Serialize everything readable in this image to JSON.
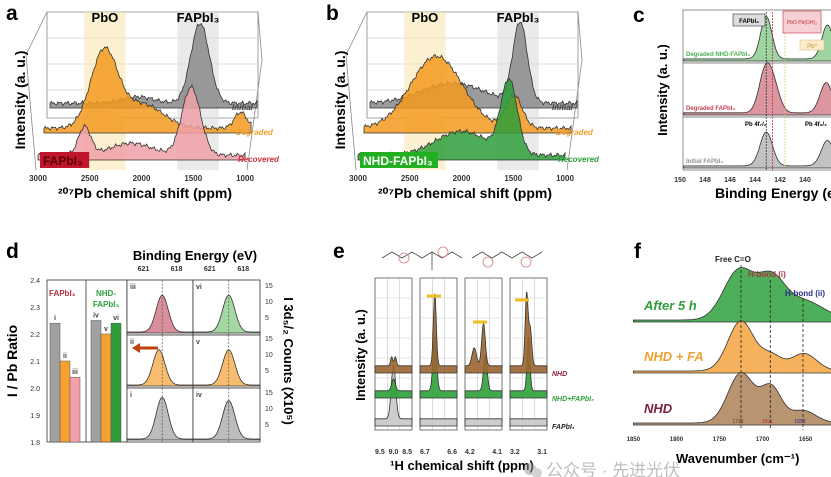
{
  "chart_data": [
    {
      "panel": "a",
      "type": "area",
      "xlabel": "²⁰⁷Pb chemical shift (ppm)",
      "ylabel": "Intensity (a. u.)",
      "xlim": [
        3000,
        1000
      ],
      "xticks": [
        "3000",
        "2500",
        "2000",
        "1500",
        "1000"
      ],
      "bands": [
        {
          "label": "PbO",
          "range": [
            2650,
            2250
          ],
          "color": "#f8e7b0"
        },
        {
          "label": "FAPbI₃",
          "range": [
            1750,
            1350
          ],
          "color": "#dcdcdc"
        }
      ],
      "sample_label": "FAPbI₃",
      "sample_color": "#c0152a",
      "series": [
        {
          "name": "Initial",
          "color": "#8a8a8a",
          "label_color": "#444444",
          "peaks": [
            [
              1550,
              1.0,
              90
            ],
            [
              2150,
              0.08,
              150
            ]
          ]
        },
        {
          "name": "Degraded",
          "color": "#f39a1f",
          "label_color": "#f0a030",
          "peaks": [
            [
              2420,
              0.95,
              130
            ],
            [
              2050,
              0.3,
              200
            ],
            [
              1100,
              0.2,
              60
            ]
          ]
        },
        {
          "name": "Recovered",
          "color": "#f0a0a8",
          "label_color": "#d03040",
          "peaks": [
            [
              1520,
              0.85,
              90
            ],
            [
              2550,
              0.35,
              60
            ],
            [
              2100,
              0.15,
              200
            ]
          ]
        }
      ]
    },
    {
      "panel": "b",
      "type": "area",
      "xlabel": "²⁰⁷Pb chemical shift (ppm)",
      "ylabel": "Intensity (a. u.)",
      "xlim": [
        3000,
        1000
      ],
      "xticks": [
        "3000",
        "2500",
        "2000",
        "1500",
        "1000"
      ],
      "bands": [
        {
          "label": "PbO",
          "range": [
            2650,
            2250
          ],
          "color": "#f8e7b0"
        },
        {
          "label": "FAPbI₃",
          "range": [
            1750,
            1350
          ],
          "color": "#dcdcdc"
        }
      ],
      "sample_label": "NHD-FAPbI₃",
      "sample_color": "#22b022",
      "series": [
        {
          "name": "Initial",
          "color": "#8a8a8a",
          "label_color": "#444444",
          "peaks": [
            [
              1550,
              1.0,
              70
            ],
            [
              2200,
              0.25,
              300
            ]
          ]
        },
        {
          "name": "Degraded",
          "color": "#f39a1f",
          "label_color": "#f0a030",
          "peaks": [
            [
              2300,
              0.9,
              250
            ],
            [
              1550,
              0.4,
              80
            ]
          ]
        },
        {
          "name": "Recovered",
          "color": "#2e9e3a",
          "label_color": "#2e9e3a",
          "peaks": [
            [
              1540,
              0.9,
              80
            ],
            [
              2000,
              0.3,
              250
            ]
          ]
        }
      ]
    },
    {
      "panel": "c",
      "type": "area",
      "xlabel": "Binding Energy (eV)",
      "ylabel": "Intensity (a. u.)",
      "xlim": [
        150,
        138
      ],
      "xticks": [
        "150",
        "148",
        "146",
        "144",
        "142",
        "140"
      ],
      "markers": [
        {
          "label": "FAPbI₃",
          "x": 143.1
        },
        {
          "label": "PbO Pb(OH)₂",
          "x": 142.6
        },
        {
          "label": "Pb⁰",
          "x": 141.6
        }
      ],
      "peak_labels": [
        "Pb 4f₇/₂",
        "Pb 4f₅/₂"
      ],
      "series": [
        {
          "name": "Degraded NHD-FAPbI₃",
          "color": "#4cb050",
          "peaks": [
            [
              143.1,
              1.0,
              0.45
            ],
            [
              138.2,
              0.8,
              0.45
            ]
          ]
        },
        {
          "name": "Degraded FAPbI₃",
          "color": "#c04050",
          "peaks": [
            [
              143.2,
              0.9,
              0.5
            ],
            [
              142.5,
              0.55,
              0.5
            ],
            [
              138.3,
              0.7,
              0.5
            ]
          ]
        },
        {
          "name": "Initial FAPbI₃",
          "color": "#909090",
          "peaks": [
            [
              143.1,
              0.8,
              0.5
            ],
            [
              138.2,
              0.6,
              0.5
            ]
          ]
        }
      ]
    },
    {
      "panel": "d",
      "type": "bar",
      "ylabel": "I / Pb Ratio",
      "ylim": [
        1.8,
        2.4
      ],
      "yticks": [
        "2.4",
        "2.3",
        "2.2",
        "2.1",
        "2.0",
        "1.9",
        "1.8"
      ],
      "groups": [
        {
          "label": "FAPbI₃",
          "label_lines": [
            "FAPbI₃"
          ],
          "color": "#b03040",
          "bars": [
            {
              "label": "i",
              "value": 2.24,
              "color": "#a0a0a0"
            },
            {
              "label": "ii",
              "value": 2.1,
              "color": "#f5a030"
            },
            {
              "label": "iii",
              "value": 2.04,
              "color": "#f4a0a8"
            }
          ]
        },
        {
          "label": "NHD-FAPbI₃",
          "label_lines": [
            "NHD-",
            "FAPbI₃"
          ],
          "color": "#2e9e3a",
          "bars": [
            {
              "label": "iv",
              "value": 2.25,
              "color": "#a0a0a0"
            },
            {
              "label": "v",
              "value": 2.2,
              "color": "#f5a030"
            },
            {
              "label": "vi",
              "value": 2.24,
              "color": "#2e9e3a"
            }
          ]
        }
      ],
      "inset": {
        "xlabel": "Binding Energy (eV)",
        "xticks": [
          "621",
          "618"
        ],
        "ylabel": "I 3d₅/₂ Counts (X10⁵)",
        "yticks": [
          "15",
          "10",
          "5"
        ],
        "panels": [
          {
            "label": "iii",
            "color": "#c86070",
            "peak": 619.3,
            "height": 11.5
          },
          {
            "label": "vi",
            "color": "#7cc87c",
            "peak": 619.3,
            "height": 11.5
          },
          {
            "label": "ii",
            "color": "#f5a030",
            "peak": 619.6,
            "height": 11
          },
          {
            "label": "v",
            "color": "#f5a030",
            "peak": 619.3,
            "height": 11
          },
          {
            "label": "i",
            "color": "#a0a0a0",
            "peak": 619.3,
            "height": 13
          },
          {
            "label": "iv",
            "color": "#a0a0a0",
            "peak": 619.3,
            "height": 12
          }
        ]
      }
    },
    {
      "panel": "e",
      "type": "area",
      "xlabel": "¹H chemical shift (ppm)",
      "ylabel": "Intensity (a. u.)",
      "windows": [
        {
          "range": [
            9.5,
            8.5
          ],
          "ticks": [
            "9.5",
            "9.0",
            "8.5"
          ]
        },
        {
          "range": [
            6.7,
            6.6
          ],
          "ticks": [
            "6.7",
            "6.6"
          ]
        },
        {
          "range": [
            4.2,
            4.1
          ],
          "ticks": [
            "4.2",
            "4.1"
          ]
        },
        {
          "range": [
            3.2,
            3.1
          ],
          "ticks": [
            "3.2",
            "3.1"
          ]
        }
      ],
      "series": [
        {
          "name": "NHD",
          "color": "#9a6530",
          "label_color": "#8b2040",
          "peaks": [
            [
              [
                9.05,
                0.15,
                0.03
              ],
              [
                8.95,
                0.15,
                0.03
              ]
            ],
            [
              [
                6.66,
                1.2,
                0.004
              ]
            ],
            [
              [
                4.15,
                0.7,
                0.005
              ],
              [
                4.175,
                0.3,
                0.006
              ]
            ],
            [
              [
                3.155,
                1.2,
                0.004
              ],
              [
                3.145,
                0.6,
                0.004
              ]
            ]
          ]
        },
        {
          "name": "NHD+FAPbI₃",
          "color": "#2ea03a",
          "label_color": "#2ea03a",
          "peaks": [
            [
              [
                9.0,
                0.2,
                0.05
              ]
            ],
            [
              [
                6.66,
                0.9,
                0.005
              ]
            ],
            [
              [
                4.145,
                0.6,
                0.005
              ]
            ],
            [
              [
                3.15,
                0.9,
                0.004
              ]
            ]
          ]
        },
        {
          "name": "FAPbI₃",
          "color": "#c8c8c8",
          "label_color": "#222222",
          "peaks": [
            [
              [
                9.0,
                0.9,
                0.06
              ]
            ],
            [],
            [],
            []
          ]
        }
      ]
    },
    {
      "panel": "f",
      "type": "area",
      "xlabel": "Wavenumber (cm⁻¹)",
      "xlim": [
        1850,
        1620
      ],
      "xticks": [
        "1850",
        "1800",
        "1750",
        "1700",
        "1650"
      ],
      "markers": [
        {
          "label": "Free C=O",
          "value": "1725",
          "x": 1725,
          "color": "#222222"
        },
        {
          "label": "H-bond (i)",
          "value": "1691",
          "x": 1691,
          "color": "#b03040"
        },
        {
          "label": "H-bond (ii)",
          "value": "1653",
          "x": 1653,
          "color": "#2a2a80"
        }
      ],
      "series": [
        {
          "name": "After 5 h",
          "color": "#3aa648",
          "label_color": "#2e9e3a",
          "peaks": [
            [
              1727,
              1.0,
              18
            ],
            [
              1690,
              0.7,
              15
            ],
            [
              1655,
              0.4,
              25
            ]
          ]
        },
        {
          "name": "NHD + FA",
          "color": "#f5a84a",
          "label_color": "#f0a030",
          "peaks": [
            [
              1725,
              1.0,
              15
            ],
            [
              1690,
              0.3,
              12
            ],
            [
              1652,
              0.35,
              15
            ]
          ]
        },
        {
          "name": "NHD",
          "color": "#b08860",
          "label_color": "#7a2040",
          "peaks": [
            [
              1725,
              1.0,
              15
            ],
            [
              1690,
              0.7,
              12
            ],
            [
              1653,
              0.25,
              15
            ]
          ]
        }
      ]
    }
  ],
  "panel_letters": [
    "a",
    "b",
    "c",
    "d",
    "e",
    "f"
  ],
  "watermark": "公众号 · 先进光伏"
}
